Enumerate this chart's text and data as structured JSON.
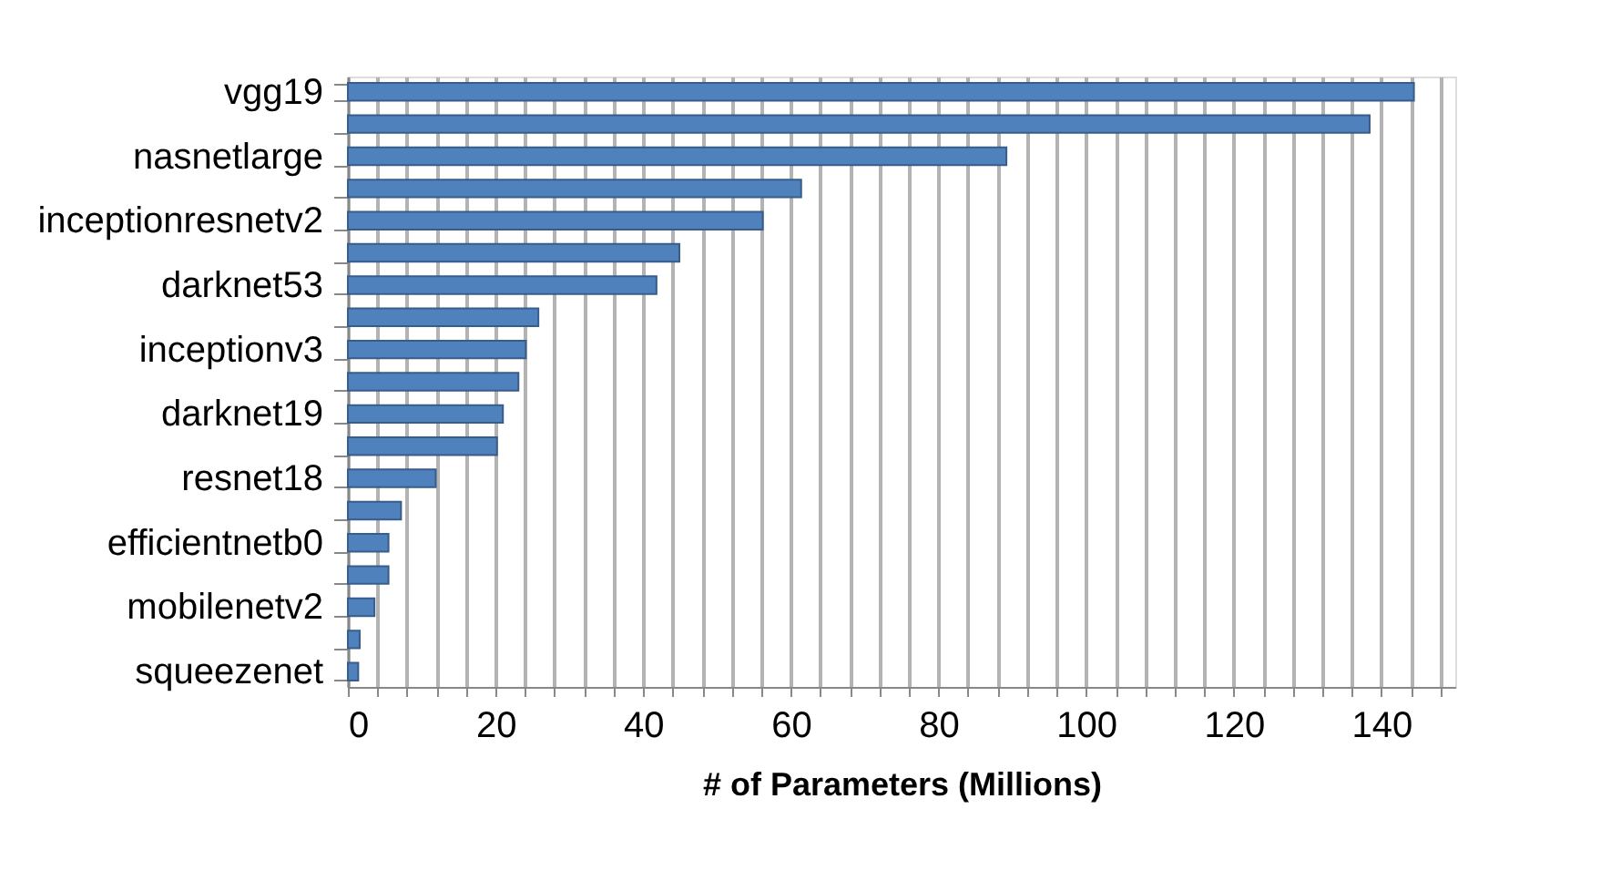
{
  "chart_data": {
    "type": "bar",
    "orientation": "horizontal",
    "xlabel": "# of Parameters (Millions)",
    "categories": [
      "vgg19",
      null,
      "nasnetlarge",
      null,
      "inceptionresnetv2",
      null,
      "darknet53",
      null,
      "inceptionv3",
      null,
      "darknet19",
      null,
      "resnet18",
      null,
      "efficientnetb0",
      null,
      "mobilenetv2",
      null,
      "squeezenet"
    ],
    "values": [
      144.4,
      138.4,
      89.2,
      61.4,
      56.2,
      44.9,
      41.8,
      25.8,
      24.1,
      23.1,
      21.0,
      20.2,
      11.9,
      7.2,
      5.5,
      5.5,
      3.6,
      1.6,
      1.4
    ],
    "color": "#4f81bd",
    "xlim": [
      0,
      150
    ],
    "xticks": [
      0,
      {
        "value": 4,
        "label": null
      },
      {
        "value": 8,
        "label": null
      },
      {
        "value": 12,
        "label": null
      },
      {
        "value": 16,
        "label": null
      },
      20,
      {
        "value": 24,
        "label": null
      },
      {
        "value": 28,
        "label": null
      },
      {
        "value": 32,
        "label": null
      },
      {
        "value": 36,
        "label": null
      },
      40,
      {
        "value": 44,
        "label": null
      },
      {
        "value": 48,
        "label": null
      },
      {
        "value": 52,
        "label": null
      },
      {
        "value": 56,
        "label": null
      },
      60,
      {
        "value": 64,
        "label": null
      },
      {
        "value": 68,
        "label": null
      },
      {
        "value": 72,
        "label": null
      },
      {
        "value": 76,
        "label": null
      },
      80,
      {
        "value": 84,
        "label": null
      },
      {
        "value": 88,
        "label": null
      },
      {
        "value": 92,
        "label": null
      },
      {
        "value": 96,
        "label": null
      },
      100,
      {
        "value": 104,
        "label": null
      },
      {
        "value": 108,
        "label": null
      },
      {
        "value": 112,
        "label": null
      },
      {
        "value": 116,
        "label": null
      },
      120,
      {
        "value": 124,
        "label": null
      },
      {
        "value": 128,
        "label": null
      },
      {
        "value": 132,
        "label": null
      },
      {
        "value": 136,
        "label": null
      },
      140,
      {
        "value": 144,
        "label": null
      },
      {
        "value": 148,
        "label": null
      }
    ],
    "grid": "x"
  }
}
